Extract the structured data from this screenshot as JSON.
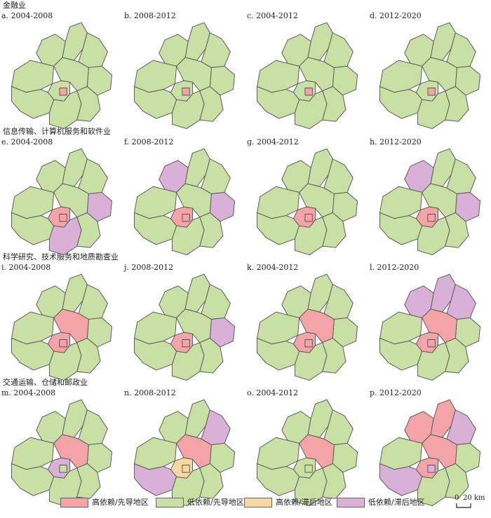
{
  "colors": {
    "high_leading": "#f4a4a6",
    "low_leading": "#c8e0a4",
    "high_lagging": "#f7d8a0",
    "low_lagging": "#d9b0d6",
    "border": "#555555"
  },
  "sections": [
    {
      "title": "金融业"
    },
    {
      "title": "信息传输、计算机服务和软件业"
    },
    {
      "title": "科学研究、技术服务和地质勘查业"
    },
    {
      "title": "交通运输、仓储和邮政业"
    }
  ],
  "panels": [
    {
      "label": "a. 2004-2008",
      "highlight": {
        "N": "g",
        "E": "g",
        "C": "g",
        "CC": "r",
        "S": "g",
        "SE": "g",
        "W": "g",
        "NW": "g",
        "NE": "g",
        "SW": "g",
        "M": "g"
      }
    },
    {
      "label": "b. 2008-2012",
      "highlight": {
        "N": "g",
        "E": "g",
        "C": "g",
        "CC": "r",
        "S": "g",
        "SE": "g",
        "W": "g",
        "NW": "g",
        "NE": "g",
        "SW": "g",
        "M": "g"
      }
    },
    {
      "label": "c. 2004-2012",
      "highlight": {
        "N": "g",
        "E": "g",
        "C": "g",
        "CC": "r",
        "S": "g",
        "SE": "g",
        "W": "g",
        "NW": "g",
        "NE": "g",
        "SW": "g",
        "M": "g"
      }
    },
    {
      "label": "d. 2012-2020",
      "highlight": {
        "N": "g",
        "E": "g",
        "C": "g",
        "CC": "r",
        "S": "g",
        "SE": "g",
        "W": "g",
        "NW": "g",
        "NE": "g",
        "SW": "g",
        "M": "g"
      }
    },
    {
      "label": "e. 2004-2008",
      "highlight": {
        "N": "g",
        "E": "p",
        "C": "r",
        "CC": "r",
        "S": "p",
        "SE": "g",
        "W": "g",
        "NW": "g",
        "NE": "g",
        "SW": "g",
        "M": "g"
      }
    },
    {
      "label": "f. 2008-2012",
      "highlight": {
        "N": "g",
        "E": "p",
        "C": "r",
        "CC": "r",
        "S": "g",
        "SE": "g",
        "W": "g",
        "NW": "p",
        "NE": "g",
        "SW": "g",
        "M": "g"
      }
    },
    {
      "label": "g. 2004-2012",
      "highlight": {
        "N": "g",
        "E": "g",
        "C": "r",
        "CC": "r",
        "S": "g",
        "SE": "g",
        "W": "g",
        "NW": "g",
        "NE": "g",
        "SW": "g",
        "M": "g"
      }
    },
    {
      "label": "h. 2012-2020",
      "highlight": {
        "N": "g",
        "E": "p",
        "C": "r",
        "CC": "r",
        "S": "g",
        "SE": "g",
        "W": "g",
        "NW": "p",
        "NE": "g",
        "SW": "g",
        "M": "g"
      }
    },
    {
      "label": "i. 2004-2008",
      "highlight": {
        "N": "g",
        "E": "g",
        "C": "r",
        "CC": "r",
        "S": "g",
        "SE": "g",
        "W": "g",
        "NW": "g",
        "NE": "g",
        "SW": "g",
        "M": "r"
      }
    },
    {
      "label": "j. 2008-2012",
      "highlight": {
        "N": "g",
        "E": "p",
        "C": "r",
        "CC": "r",
        "S": "g",
        "SE": "g",
        "W": "g",
        "NW": "g",
        "NE": "g",
        "SW": "g",
        "M": "g"
      }
    },
    {
      "label": "k. 2004-2012",
      "highlight": {
        "N": "g",
        "E": "g",
        "C": "r",
        "CC": "r",
        "S": "g",
        "SE": "g",
        "W": "g",
        "NW": "g",
        "NE": "g",
        "SW": "g",
        "M": "r"
      }
    },
    {
      "label": "l. 2012-2020",
      "highlight": {
        "N": "p",
        "E": "g",
        "C": "r",
        "CC": "r",
        "S": "g",
        "SE": "g",
        "W": "g",
        "NW": "p",
        "NE": "p",
        "SW": "g",
        "M": "r"
      }
    },
    {
      "label": "m. 2004-2008",
      "highlight": {
        "N": "g",
        "E": "g",
        "C": "p",
        "CC": "g",
        "S": "g",
        "SE": "g",
        "W": "g",
        "NW": "g",
        "NE": "g",
        "SW": "g",
        "M": "r"
      }
    },
    {
      "label": "n. 2008-2012",
      "highlight": {
        "N": "g",
        "E": "g",
        "C": "o",
        "CC": "o",
        "S": "g",
        "SE": "g",
        "W": "g",
        "NW": "g",
        "NE": "p",
        "SW": "p",
        "M": "r"
      }
    },
    {
      "label": "o. 2004-2012",
      "highlight": {
        "N": "g",
        "E": "g",
        "C": "g",
        "CC": "g",
        "S": "g",
        "SE": "g",
        "W": "g",
        "NW": "g",
        "NE": "g",
        "SW": "g",
        "M": "r"
      }
    },
    {
      "label": "p. 2012-2020",
      "highlight": {
        "N": "r",
        "E": "g",
        "C": "r",
        "CC": "p",
        "S": "g",
        "SE": "g",
        "W": "g",
        "NW": "r",
        "NE": "p",
        "SW": "p",
        "M": "r"
      }
    }
  ],
  "legend": [
    {
      "label": "高依赖/先导地区",
      "color_key": "high_leading"
    },
    {
      "label": "低依赖/先导地区",
      "color_key": "low_leading"
    },
    {
      "label": "高依赖/滞后地区",
      "color_key": "high_lagging"
    },
    {
      "label": "低依赖/滞后地区",
      "color_key": "low_lagging"
    }
  ],
  "scale": {
    "zero": "0",
    "distance": "20 km"
  }
}
